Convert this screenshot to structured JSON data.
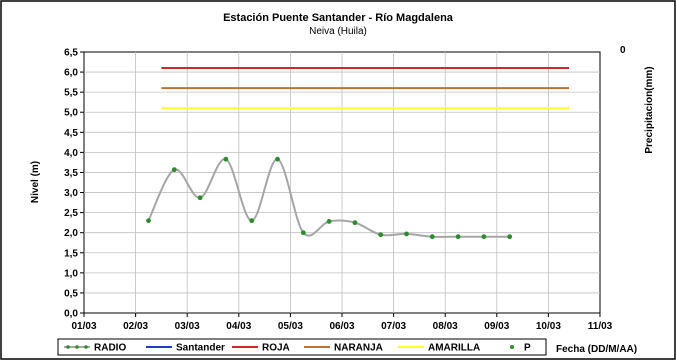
{
  "chart_data": {
    "type": "line",
    "title": "Estación Puente Santander - Río Magdalena",
    "subtitle": "Neiva (Huila)",
    "ylabel": "Nivel (m)",
    "y2label": "Precipitacion(mm)",
    "xlabel": "Fecha (DD/M/AA)",
    "ylim": [
      0,
      6.5
    ],
    "ystep": 0.5,
    "xlim": [
      0,
      10
    ],
    "y_ticks": [
      "0,0",
      "0,5",
      "1,0",
      "1,5",
      "2,0",
      "2,5",
      "3,0",
      "3,5",
      "4,0",
      "4,5",
      "5,0",
      "5,5",
      "6,0",
      "6,5"
    ],
    "x_ticks": [
      "01/03",
      "02/03",
      "03/03",
      "04/03",
      "05/03",
      "06/03",
      "07/03",
      "08/03",
      "09/03",
      "10/03",
      "11/03"
    ],
    "y2_ticks": [
      "0"
    ],
    "grid": true,
    "legend_position": "bottom",
    "series": [
      {
        "name": "RADIO",
        "color": "#a6a6a6",
        "marker_color": "#2e8b2e",
        "smooth": true,
        "x": [
          1.25,
          1.75,
          2.25,
          2.75,
          3.25,
          3.75,
          4.25,
          4.75,
          5.25,
          5.75,
          6.25,
          6.75,
          7.25,
          7.75,
          8.25
        ],
        "values": [
          2.3,
          3.57,
          2.87,
          3.83,
          2.3,
          3.83,
          2.0,
          2.28,
          2.25,
          1.95,
          1.97,
          1.9,
          1.9,
          1.9,
          1.9
        ]
      },
      {
        "name": "Santander",
        "color": "#1f3fbf",
        "x": [],
        "values": []
      },
      {
        "name": "ROJA",
        "color": "#cc2a2a",
        "x": [
          1.5,
          9.4
        ],
        "values": [
          6.1,
          6.1
        ]
      },
      {
        "name": "NARANJA",
        "color": "#b5733c",
        "x": [
          1.5,
          9.4
        ],
        "values": [
          5.6,
          5.6
        ]
      },
      {
        "name": "AMARILLA",
        "color": "#ffff33",
        "x": [
          1.5,
          9.4
        ],
        "values": [
          5.1,
          5.1
        ]
      },
      {
        "name": "P",
        "color": "#2e8b2e",
        "x": [],
        "values": []
      }
    ]
  }
}
